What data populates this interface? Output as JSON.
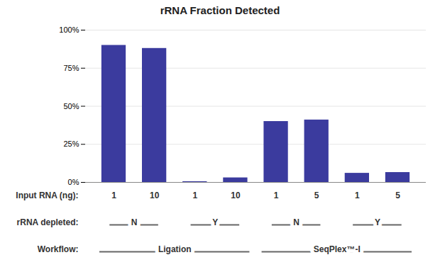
{
  "chart_data": {
    "type": "bar",
    "title": "rRNA Fraction Detected",
    "xlabel": "Input RNA (ng):",
    "categories": [
      "1",
      "10",
      "1",
      "10",
      "1",
      "5",
      "1",
      "5"
    ],
    "values": [
      0.9,
      0.88,
      0.005,
      0.03,
      0.4,
      0.41,
      0.06,
      0.065
    ],
    "color": "#3B3B9E",
    "ylim": [
      0,
      1.0
    ],
    "yticks": [
      {
        "value": 0,
        "label": "0%"
      },
      {
        "value": 0.25,
        "label": "25%"
      },
      {
        "value": 0.5,
        "label": "50%"
      },
      {
        "value": 0.75,
        "label": "75%"
      },
      {
        "value": 1.0,
        "label": "100%"
      }
    ],
    "grid": true,
    "annotations": [
      {
        "label": "rRNA depleted:",
        "groups": [
          {
            "text": "N",
            "span": 2
          },
          {
            "text": "Y",
            "span": 2
          },
          {
            "text": "N",
            "span": 2
          },
          {
            "text": "Y",
            "span": 2
          }
        ]
      },
      {
        "label": "Workflow:",
        "groups": [
          {
            "text": "Ligation",
            "span": 4
          },
          {
            "text": "SeqPlex™-I",
            "span": 4
          }
        ]
      }
    ]
  }
}
